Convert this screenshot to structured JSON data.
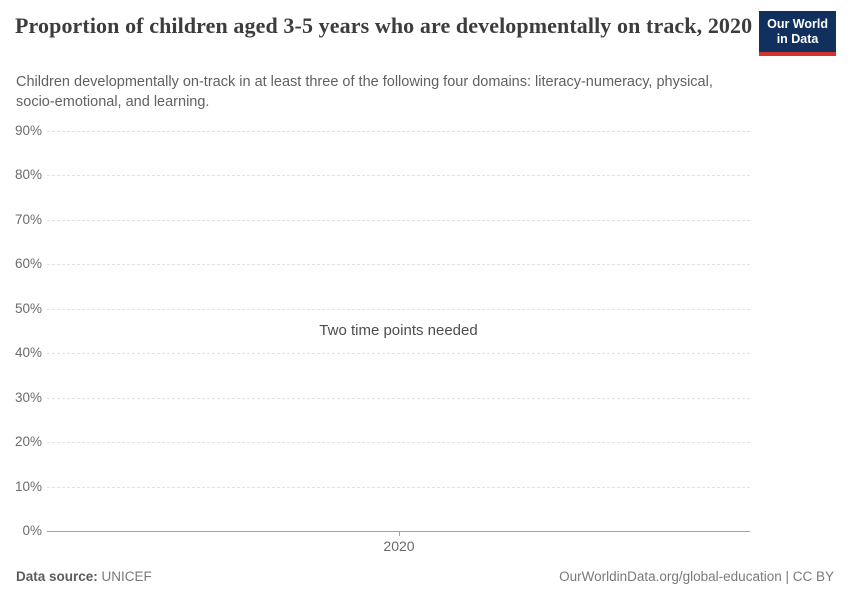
{
  "header": {
    "title": "Proportion of children aged 3-5 years who are developmentally on track, 2020",
    "subtitle": "Children developmentally on-track in at least three of the following four domains: literacy-numeracy, physical, socio-emotional, and learning.",
    "logo": {
      "line1": "Our World",
      "line2": "in Data"
    }
  },
  "chart_data": {
    "type": "line",
    "title": "Proportion of children aged 3-5 years who are developmentally on track, 2020",
    "series": [],
    "message": "Two time points needed",
    "xaxis": {
      "ticks": [
        "2020"
      ]
    },
    "yaxis": {
      "range": [
        0,
        90
      ],
      "ticks": [
        0,
        10,
        20,
        30,
        40,
        50,
        60,
        70,
        80,
        90
      ],
      "suffix": "%"
    },
    "grid": true,
    "legend": "none"
  },
  "footer": {
    "datasource_label": "Data source:",
    "datasource_value": "UNICEF",
    "license": "OurWorldinData.org/global-education | CC BY"
  },
  "colors": {
    "logo_background": "#12305e",
    "logo_accent": "#d0342c",
    "grid": "#e1e1e1",
    "axis": "#a3a3a3",
    "tick_text": "#6b6b6b"
  }
}
